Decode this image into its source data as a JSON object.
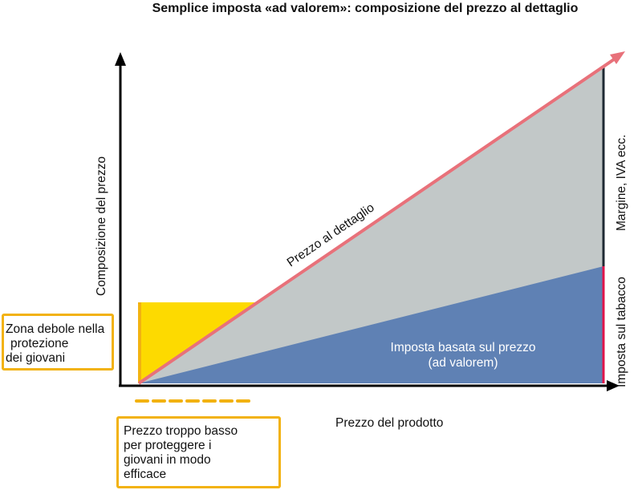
{
  "title": "Semplice imposta «ad valorem»: composizione del prezzo al dettaglio",
  "y_axis_label": "Composizione del prezzo",
  "x_axis_label": "Prezzo del prodotto",
  "retail_price_label": "Prezzo al dettaglio",
  "ad_valorem_label_line1": "Imposta basata sul prezzo",
  "ad_valorem_label_line2": "(ad valorem)",
  "margin_label": "Margine, IVA ecc.",
  "tobacco_tax_label": "Imposta sul tabacco",
  "weak_zone_box": {
    "lines": [
      "Zona debole nella",
      "protezione",
      "dei giovani"
    ]
  },
  "low_price_box": {
    "lines": [
      "Prezzo troppo basso",
      "per proteggere i",
      "giovani in modo",
      "efficace"
    ]
  },
  "colors": {
    "axis": "#000000",
    "retail_line": "#e8717a",
    "margin_area": "#c2c8c8",
    "tax_area": "#5f81b4",
    "weak_zone": "#fdda00",
    "box_border": "#f2b211",
    "tobacco_bar": "#e0144a",
    "margin_bar": "#1f2a33"
  }
}
